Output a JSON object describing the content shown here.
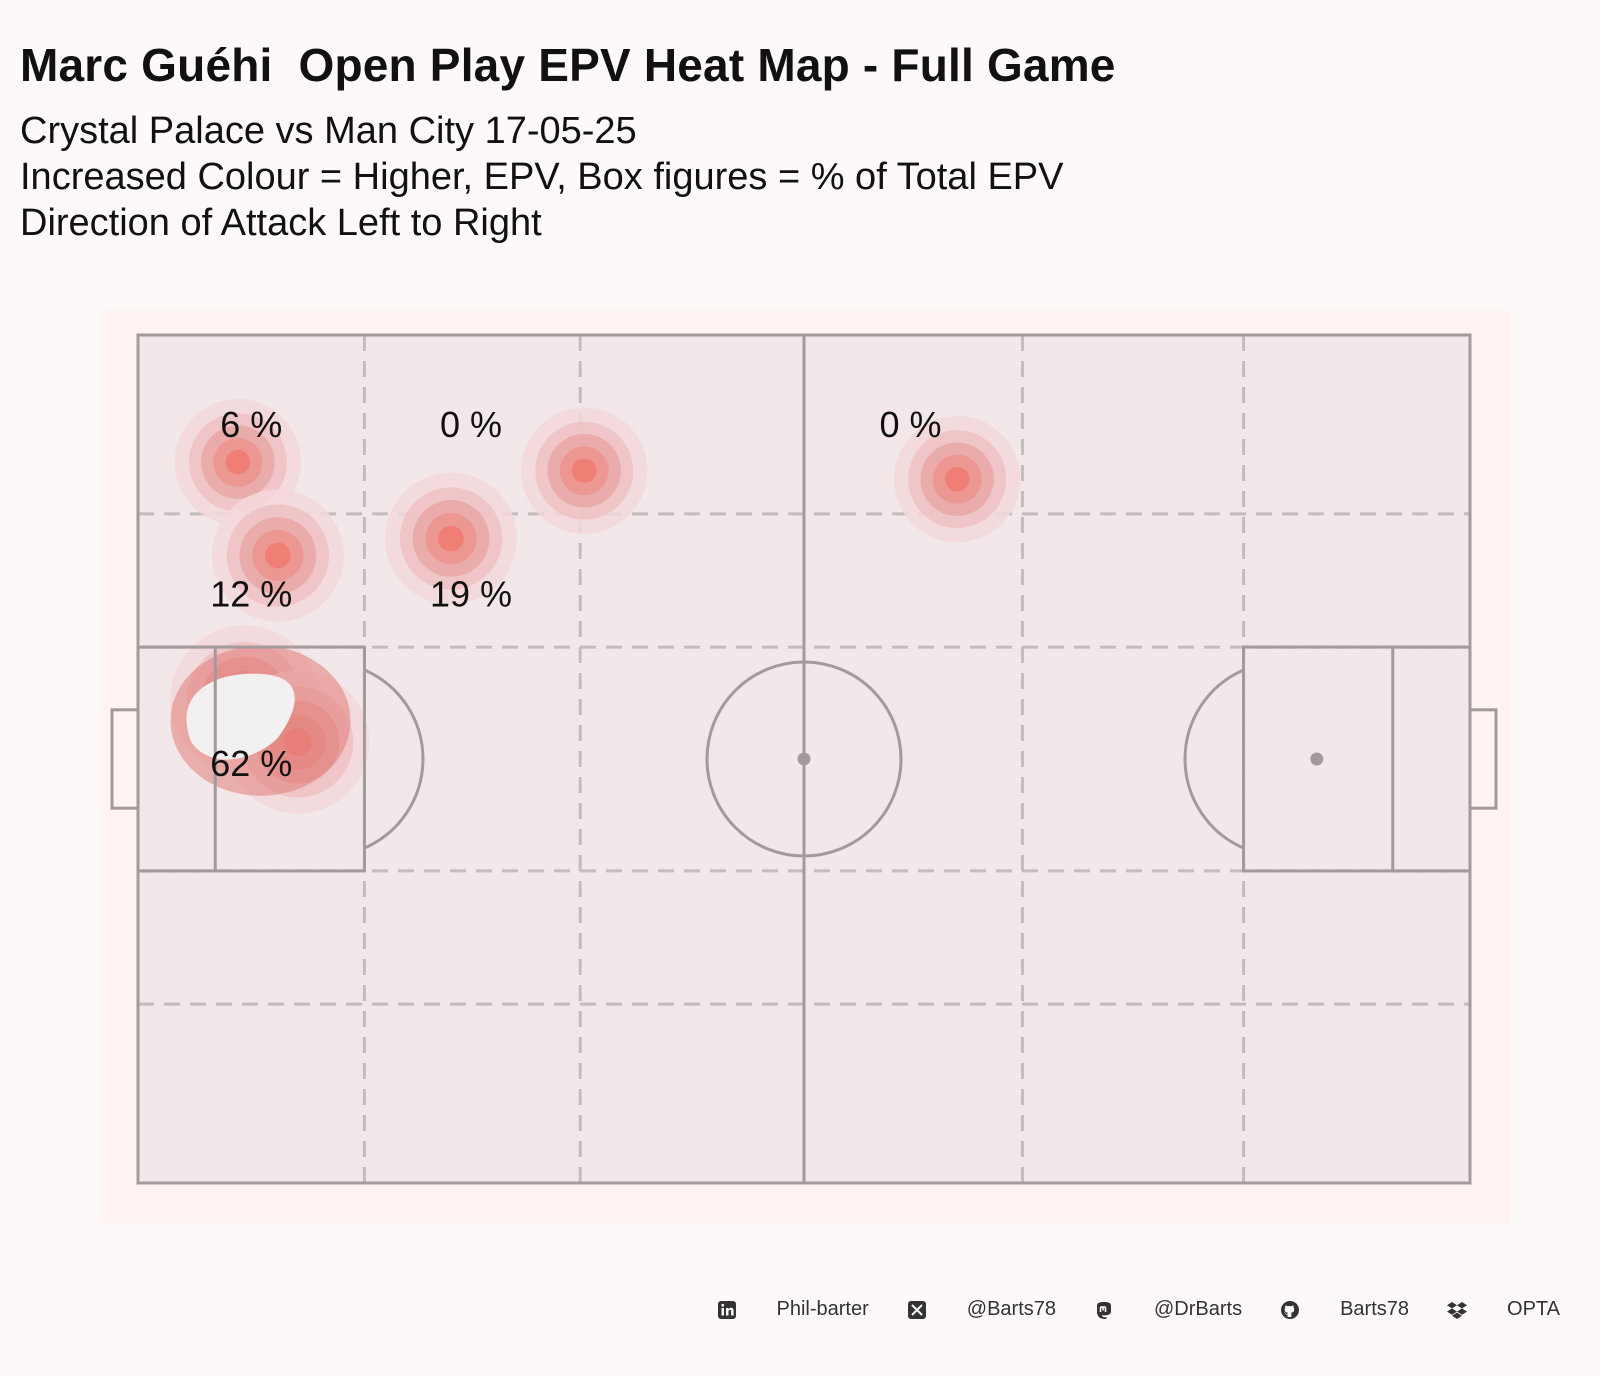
{
  "title": "Marc Guéhi  Open Play EPV Heat Map - Full Game",
  "subtitle_lines": [
    "Crystal Palace vs Man City 17-05-25",
    "Increased Colour = Higher, EPV, Box figures = % of Total EPV",
    "Direction of Attack Left to Right"
  ],
  "chart_data": {
    "type": "heatmap",
    "direction_of_attack": "left to right",
    "zone_labels": [
      {
        "zone": "left-wing-defensive-third-wide",
        "text": "6 %"
      },
      {
        "zone": "left-wing-own-half-wide",
        "text": "0 %"
      },
      {
        "zone": "left-wing-opposition-half",
        "text": "0 %"
      },
      {
        "zone": "left-halfspace-defensive-third",
        "text": "12 %"
      },
      {
        "zone": "left-halfspace-own-half",
        "text": "19 %"
      },
      {
        "zone": "own-penalty-area",
        "text": "62 %"
      }
    ],
    "density_points": [
      {
        "x": 7.5,
        "y": 85,
        "weight": 0.6
      },
      {
        "x": 10.5,
        "y": 74,
        "weight": 0.7
      },
      {
        "x": 23.5,
        "y": 76,
        "weight": 0.7
      },
      {
        "x": 33.5,
        "y": 84,
        "weight": 0.6
      },
      {
        "x": 61.5,
        "y": 83,
        "weight": 0.6
      },
      {
        "x": 8,
        "y": 57,
        "weight": 1.0
      },
      {
        "x": 12,
        "y": 52,
        "weight": 0.9
      }
    ],
    "colors": {
      "low": "#f3d7da",
      "mid": "#e9a7a6",
      "high": "#f07b72",
      "peak": "#f2f0f0"
    }
  },
  "footer": {
    "items": [
      {
        "icon": "linkedin-icon",
        "text": "Phil-barter"
      },
      {
        "icon": "x-twitter-icon",
        "text": "@Barts78"
      },
      {
        "icon": "mastodon-icon",
        "text": "@DrBarts"
      },
      {
        "icon": "github-icon",
        "text": "Barts78"
      },
      {
        "icon": "dropbox-icon",
        "text": "OPTA"
      }
    ]
  }
}
